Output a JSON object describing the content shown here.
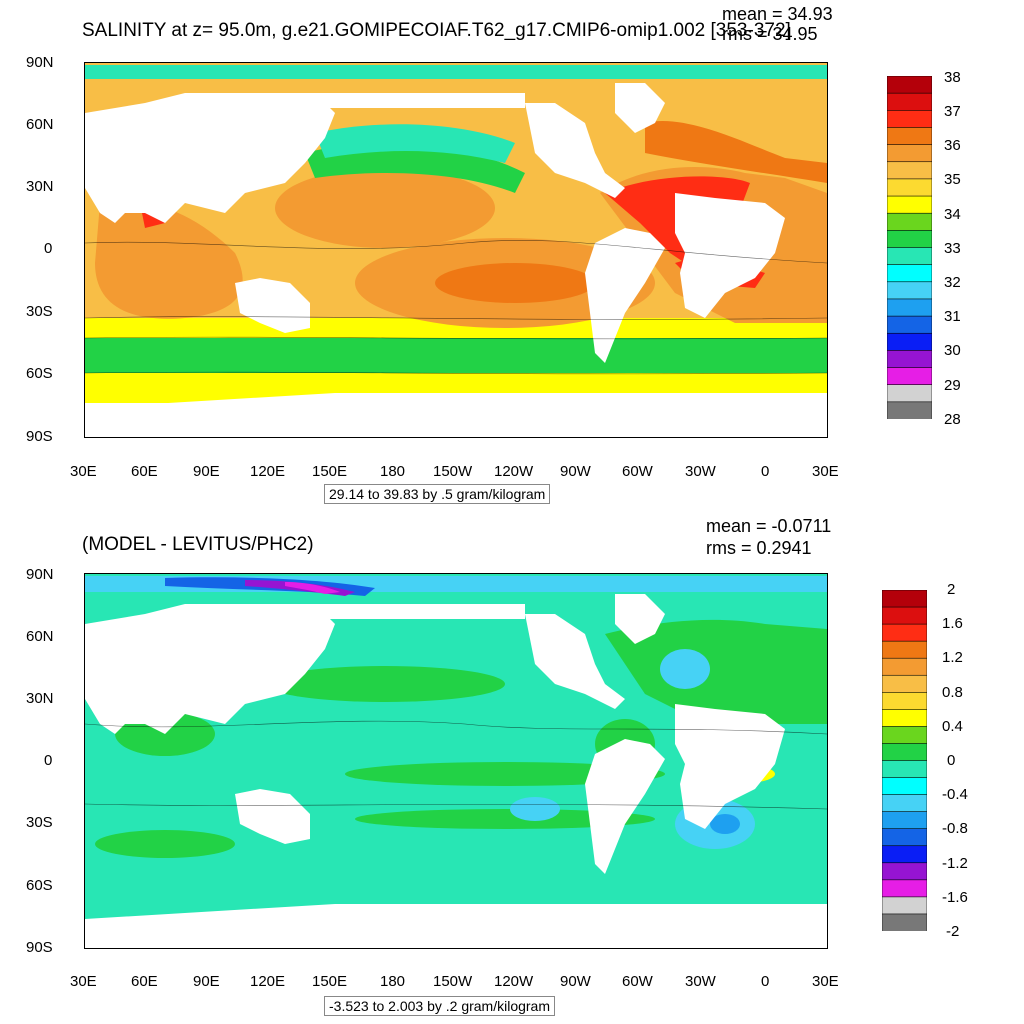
{
  "panel1": {
    "title": "SALINITY at z=  95.0m, g.e21.GOMIPECOIAF.T62_g17.CMIP6-omip1.002 [353-372]",
    "mean_text": "mean = 34.93",
    "rms_text": "rms = 34.95",
    "range_text": "29.14 to 39.83 by .5 gram/kilogram",
    "colorbar_labels": [
      "38",
      "37",
      "36",
      "35",
      "34",
      "33",
      "32",
      "31",
      "30",
      "29",
      "28"
    ],
    "colorbar_colors": [
      "#b4000a",
      "#dc0f0f",
      "#ff2d14",
      "#ef7814",
      "#f39b32",
      "#f8be46",
      "#fcda30",
      "#ffff00",
      "#6ad61e",
      "#22d246",
      "#28e6b4",
      "#00ffff",
      "#46d2f5",
      "#1ea0f0",
      "#1464e6",
      "#0a1ef5",
      "#9614d2",
      "#e61ee6",
      "#d2d2d2",
      "#787878"
    ]
  },
  "panel2": {
    "title": "(MODEL - LEVITUS/PHC2)",
    "mean_text": "mean = -0.0711",
    "rms_text": "rms = 0.2941",
    "range_text": "-3.523 to 2.003 by .2 gram/kilogram",
    "colorbar_labels": [
      "2",
      "1.6",
      "1.2",
      "0.8",
      "0.4",
      "0",
      "-0.4",
      "-0.8",
      "-1.2",
      "-1.6",
      "-2"
    ],
    "colorbar_colors": [
      "#b4000a",
      "#dc0f0f",
      "#ff2d14",
      "#ef7814",
      "#f39b32",
      "#f8be46",
      "#fcda30",
      "#ffff00",
      "#6ad61e",
      "#22d246",
      "#28e6b4",
      "#00ffff",
      "#46d2f5",
      "#1ea0f0",
      "#1464e6",
      "#0a1ef5",
      "#9614d2",
      "#e61ee6",
      "#d2d2d2",
      "#787878"
    ]
  },
  "lat_labels": [
    "90N",
    "60N",
    "30N",
    "0",
    "30S",
    "60S",
    "90S"
  ],
  "lon_labels": [
    "30E",
    "60E",
    "90E",
    "120E",
    "150E",
    "180",
    "150W",
    "120W",
    "90W",
    "60W",
    "30W",
    "0",
    "30E"
  ],
  "fill_colors": {
    "land": "#ffffff",
    "p1_warm": "#f8be46",
    "p1_orange": "#f39b32",
    "p1_deep": "#ef7814",
    "p1_red": "#ff2d14",
    "p1_darkred": "#dc0f0f",
    "p1_yellow": "#ffff00",
    "p1_green": "#22d246",
    "p1_cyan": "#28e6b4",
    "p1_lightgreen": "#6ad61e",
    "p2_cyan": "#28e6b4",
    "p2_green": "#22d246",
    "p2_lightgreen": "#6ad61e",
    "p2_blue": "#46d2f5",
    "p2_darkblue": "#1e8cf0",
    "p2_yellow": "#fcda30",
    "p2_purple": "#9614d2",
    "p2_magenta": "#e61ee6"
  }
}
